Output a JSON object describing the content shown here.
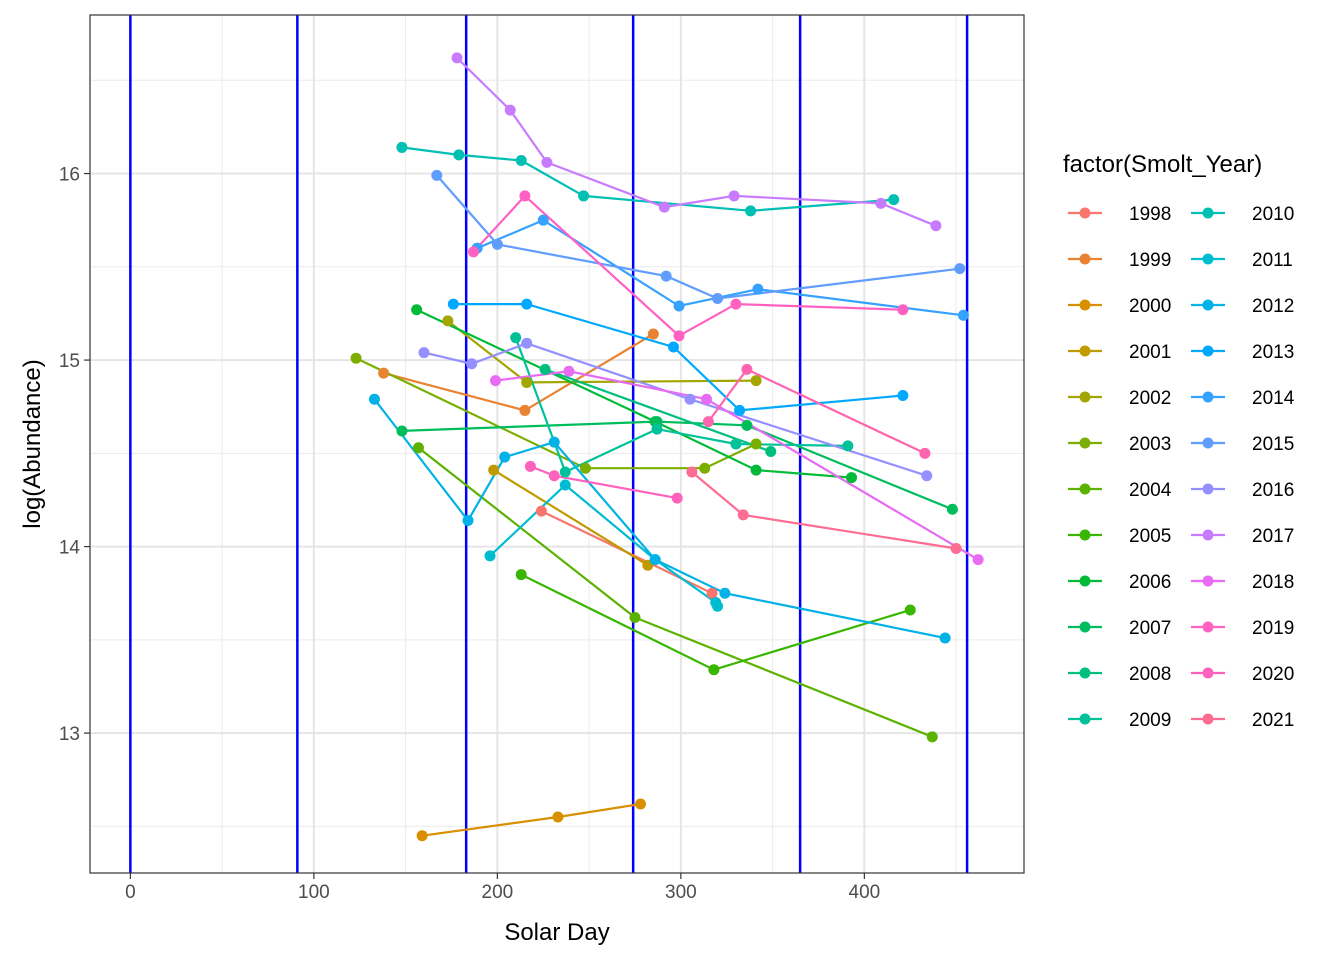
{
  "chart_data": {
    "type": "line",
    "xlabel": "Solar Day",
    "ylabel": "log(Abundance)",
    "xlim": [
      -22,
      487
    ],
    "ylim": [
      12.25,
      16.85
    ],
    "x_ticks": [
      0,
      100,
      200,
      300,
      400
    ],
    "y_ticks": [
      13,
      14,
      15,
      16
    ],
    "grid": true,
    "vertical_lines": {
      "color": "#0000ff",
      "x": [
        0,
        91,
        183,
        274,
        365,
        456
      ]
    },
    "legend": {
      "title": "factor(Smolt_Year)",
      "position": "right"
    },
    "series": [
      {
        "name": "1998",
        "color": "#F8766D",
        "points": [
          [
            224,
            14.19
          ],
          [
            317,
            13.75
          ]
        ]
      },
      {
        "name": "1999",
        "color": "#EA8331",
        "points": [
          [
            138,
            14.93
          ],
          [
            215,
            14.73
          ],
          [
            285,
            15.14
          ]
        ]
      },
      {
        "name": "2000",
        "color": "#D89000",
        "points": [
          [
            159,
            12.45
          ],
          [
            233,
            12.55
          ],
          [
            278,
            12.62
          ]
        ]
      },
      {
        "name": "2001",
        "color": "#C09B00",
        "points": [
          [
            198,
            14.41
          ],
          [
            282,
            13.9
          ]
        ]
      },
      {
        "name": "2002",
        "color": "#A3A500",
        "points": [
          [
            173,
            15.21
          ],
          [
            216,
            14.88
          ],
          [
            341,
            14.89
          ]
        ]
      },
      {
        "name": "2003",
        "color": "#7CAE00",
        "points": [
          [
            123,
            15.01
          ],
          [
            248,
            14.42
          ],
          [
            313,
            14.42
          ],
          [
            341,
            14.55
          ]
        ]
      },
      {
        "name": "2004",
        "color": "#5BB300",
        "points": [
          [
            157,
            14.53
          ],
          [
            275,
            13.62
          ],
          [
            437,
            12.98
          ]
        ]
      },
      {
        "name": "2005",
        "color": "#39B600",
        "points": [
          [
            213,
            13.85
          ],
          [
            318,
            13.34
          ],
          [
            425,
            13.66
          ]
        ]
      },
      {
        "name": "2006",
        "color": "#00BA38",
        "points": [
          [
            156,
            15.27
          ],
          [
            286,
            14.67
          ],
          [
            341,
            14.41
          ],
          [
            393,
            14.37
          ]
        ]
      },
      {
        "name": "2007",
        "color": "#00BD5C",
        "points": [
          [
            148,
            14.62
          ],
          [
            287,
            14.67
          ],
          [
            336,
            14.65
          ],
          [
            448,
            14.2
          ]
        ]
      },
      {
        "name": "2008",
        "color": "#00BF7D",
        "points": [
          [
            226,
            14.95
          ],
          [
            349,
            14.51
          ]
        ]
      },
      {
        "name": "2009",
        "color": "#00C19A",
        "points": [
          [
            210,
            15.12
          ],
          [
            237,
            14.4
          ],
          [
            287,
            14.63
          ],
          [
            330,
            14.55
          ],
          [
            391,
            14.54
          ]
        ]
      },
      {
        "name": "2010",
        "color": "#00BFB3",
        "points": [
          [
            148,
            16.14
          ],
          [
            179,
            16.1
          ],
          [
            213,
            16.07
          ],
          [
            247,
            15.88
          ],
          [
            338,
            15.8
          ],
          [
            416,
            15.86
          ]
        ]
      },
      {
        "name": "2011",
        "color": "#00BCD1",
        "points": [
          [
            196,
            13.95
          ],
          [
            237,
            14.33
          ],
          [
            286,
            13.93
          ],
          [
            319,
            13.7
          ],
          [
            320,
            13.68
          ]
        ]
      },
      {
        "name": "2012",
        "color": "#00B2E5",
        "points": [
          [
            133,
            14.79
          ],
          [
            184,
            14.14
          ],
          [
            204,
            14.48
          ],
          [
            231,
            14.56
          ],
          [
            286,
            13.93
          ],
          [
            324,
            13.75
          ],
          [
            444,
            13.51
          ]
        ]
      },
      {
        "name": "2013",
        "color": "#00A9FF",
        "points": [
          [
            176,
            15.3
          ],
          [
            216,
            15.3
          ],
          [
            296,
            15.07
          ],
          [
            332,
            14.73
          ],
          [
            421,
            14.81
          ]
        ]
      },
      {
        "name": "2014",
        "color": "#35A2FF",
        "points": [
          [
            189,
            15.6
          ],
          [
            225,
            15.75
          ],
          [
            299,
            15.29
          ],
          [
            342,
            15.38
          ],
          [
            454,
            15.24
          ]
        ]
      },
      {
        "name": "2015",
        "color": "#619CFF",
        "points": [
          [
            167,
            15.99
          ],
          [
            200,
            15.62
          ],
          [
            292,
            15.45
          ],
          [
            320,
            15.33
          ],
          [
            452,
            15.49
          ]
        ]
      },
      {
        "name": "2016",
        "color": "#9590FF",
        "points": [
          [
            160,
            15.04
          ],
          [
            186,
            14.98
          ],
          [
            216,
            15.09
          ],
          [
            305,
            14.79
          ],
          [
            434,
            14.38
          ]
        ]
      },
      {
        "name": "2017",
        "color": "#C77CFF",
        "points": [
          [
            178,
            16.62
          ],
          [
            207,
            16.34
          ],
          [
            227,
            16.06
          ],
          [
            291,
            15.82
          ],
          [
            329,
            15.88
          ],
          [
            409,
            15.84
          ],
          [
            439,
            15.72
          ]
        ]
      },
      {
        "name": "2018",
        "color": "#E76BF3",
        "points": [
          [
            199,
            14.89
          ],
          [
            239,
            14.94
          ],
          [
            314,
            14.79
          ],
          [
            462,
            13.93
          ]
        ]
      },
      {
        "name": "2019",
        "color": "#FF61C3",
        "points": [
          [
            187,
            15.58
          ],
          [
            215,
            15.88
          ],
          [
            299,
            15.13
          ],
          [
            330,
            15.3
          ],
          [
            421,
            15.27
          ]
        ]
      },
      {
        "name": "2020",
        "color": "#FF62BC",
        "points": [
          [
            218,
            14.43
          ],
          [
            231,
            14.38
          ],
          [
            298,
            14.26
          ]
        ]
      },
      {
        "name": "2021",
        "color": "#FF6C91",
        "points": [
          [
            306,
            14.4
          ],
          [
            334,
            14.17
          ],
          [
            450,
            13.99
          ]
        ]
      },
      {
        "name": "",
        "color": "#FF65AE",
        "points": [
          [
            315,
            14.67
          ],
          [
            336,
            14.95
          ],
          [
            433,
            14.5
          ]
        ]
      }
    ]
  }
}
